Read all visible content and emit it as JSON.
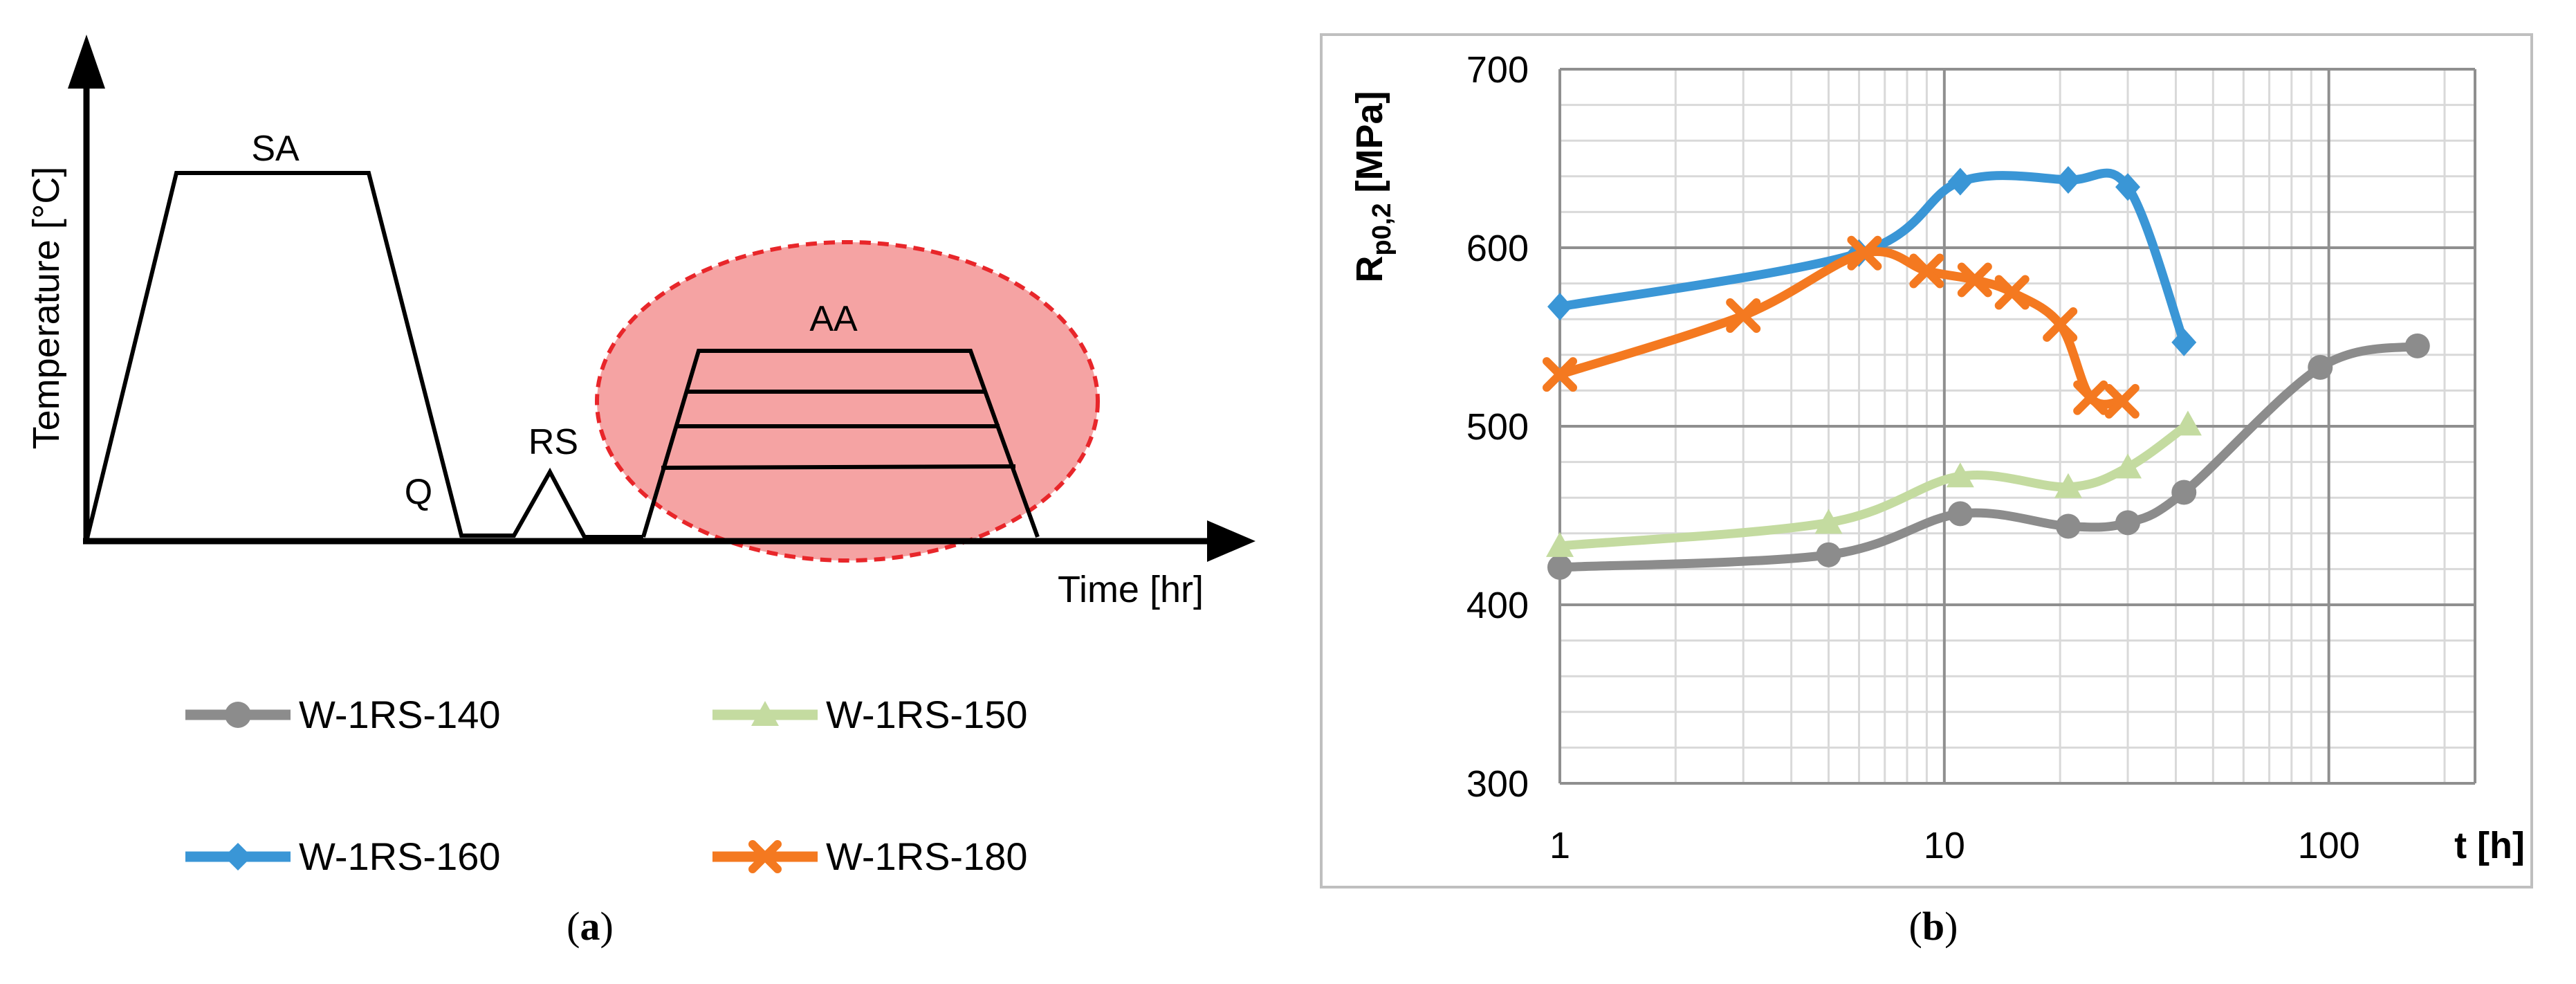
{
  "panel_a": {
    "caption_label": "a",
    "ylabel": "Temperature [°C]",
    "xlabel": "Time [hr]",
    "stage_labels": {
      "sa": "SA",
      "q": "Q",
      "rs": "RS",
      "aa": "AA"
    },
    "colors": {
      "highlight_fill": "#f5a3a3",
      "highlight_stroke": "#e8262a",
      "line": "#000000"
    }
  },
  "legend": [
    {
      "name": "W-1RS-140",
      "color": "#8c8c8c",
      "marker": "circle"
    },
    {
      "name": "W-1RS-150",
      "color": "#c4dba0",
      "marker": "triangle"
    },
    {
      "name": "W-1RS-160",
      "color": "#3a96d6",
      "marker": "diamond"
    },
    {
      "name": "W-1RS-180",
      "color": "#f47920",
      "marker": "x"
    }
  ],
  "panel_b": {
    "caption_label": "b"
  },
  "chart_data": {
    "type": "line",
    "title": "",
    "ylabel_main": "R",
    "ylabel_sub": "p0,2",
    "ylabel_unit": " [MPa]",
    "xlabel": "t [h]",
    "xscale": "log",
    "xlim": [
      1,
      240
    ],
    "ylim": [
      300,
      700
    ],
    "xticks": [
      1,
      10,
      100
    ],
    "xtick_labels": [
      "1",
      "10",
      "100"
    ],
    "yticks": [
      300,
      400,
      500,
      600,
      700
    ],
    "ytick_labels": [
      "300",
      "400",
      "500",
      "600",
      "700"
    ],
    "grid": true,
    "series": [
      {
        "name": "W-1RS-140",
        "color": "#8c8c8c",
        "marker": "circle",
        "x": [
          1,
          5,
          11,
          21,
          30,
          42,
          95,
          170
        ],
        "y": [
          421,
          428,
          451,
          444,
          446,
          463,
          533,
          545
        ]
      },
      {
        "name": "W-1RS-150",
        "color": "#c4dba0",
        "marker": "triangle",
        "x": [
          1,
          5,
          11,
          21,
          30,
          43
        ],
        "y": [
          433,
          446,
          472,
          466,
          477,
          501
        ]
      },
      {
        "name": "W-1RS-160",
        "color": "#3a96d6",
        "marker": "diamond",
        "x": [
          1,
          6,
          11,
          21,
          30,
          42
        ],
        "y": [
          567,
          597,
          637,
          638,
          634,
          547
        ]
      },
      {
        "name": "W-1RS-180",
        "color": "#f47920",
        "marker": "x",
        "x": [
          1,
          3,
          6.2,
          9,
          12,
          15,
          20,
          24,
          29
        ],
        "y": [
          529,
          562,
          597,
          587,
          582,
          575,
          557,
          516,
          514
        ]
      }
    ]
  }
}
